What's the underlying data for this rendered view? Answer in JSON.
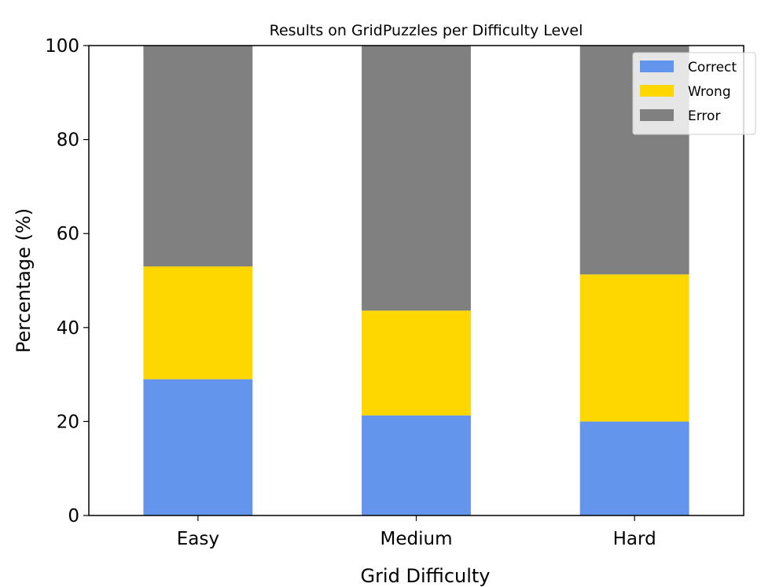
{
  "chart_data": {
    "type": "bar",
    "stacked": true,
    "title": "Results on GridPuzzles per Difficulty Level",
    "xlabel": "Grid Difficulty",
    "ylabel": "Percentage (%)",
    "categories": [
      "Easy",
      "Medium",
      "Hard"
    ],
    "ylim": [
      0,
      100
    ],
    "yticks": [
      "0",
      "20",
      "40",
      "60",
      "80",
      "100"
    ],
    "grid": false,
    "legend_position": "top-right",
    "series": [
      {
        "name": "Correct",
        "color": "#6495ED",
        "values": [
          29,
          21.3,
          20
        ]
      },
      {
        "name": "Wrong",
        "color": "#FFD700",
        "values": [
          24,
          22.3,
          31.3
        ]
      },
      {
        "name": "Error",
        "color": "#808080",
        "values": [
          47,
          56.4,
          48.7
        ]
      }
    ]
  }
}
